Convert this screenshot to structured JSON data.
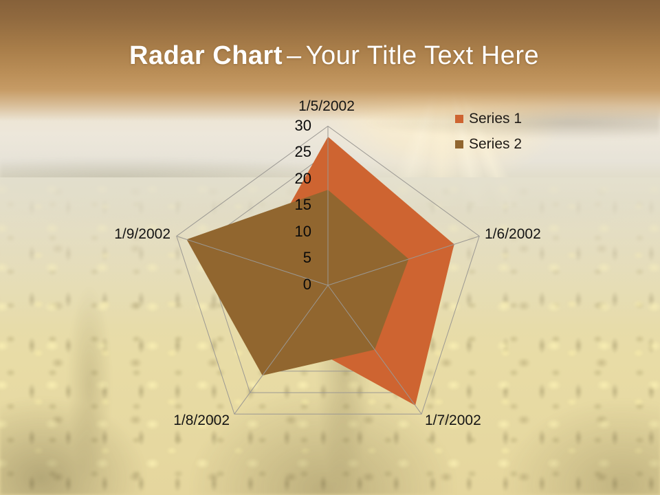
{
  "slide": {
    "title": {
      "bold": "Radar Chart",
      "separator": "–",
      "rest": "Your Title Text Here"
    }
  },
  "chart_data": {
    "type": "radar",
    "title": "",
    "categories": [
      "1/5/2002",
      "1/6/2002",
      "1/7/2002",
      "1/8/2002",
      "1/9/2002"
    ],
    "series": [
      {
        "name": "Series 1",
        "color": "#CE6431",
        "values": [
          28,
          25,
          28,
          12,
          14
        ]
      },
      {
        "name": "Series 2",
        "color": "#91662F",
        "values": [
          18,
          16,
          15,
          21,
          28
        ]
      }
    ],
    "radial_axis": {
      "min": 0,
      "max": 30,
      "step": 5,
      "ticks": [
        30,
        25,
        20,
        15,
        10,
        5,
        0
      ]
    },
    "grid": true,
    "gridline_color": "#9b9893",
    "fill_opacity": 1,
    "legend_position": "top-right",
    "legend_text_color": "#1e1a16"
  }
}
